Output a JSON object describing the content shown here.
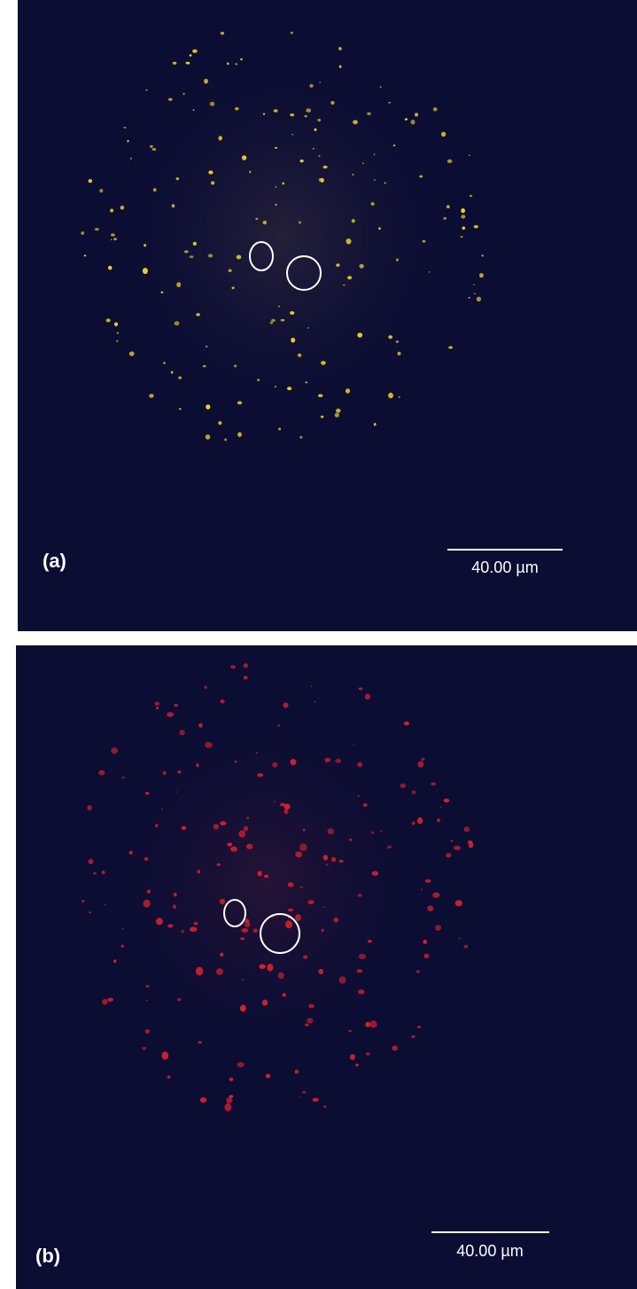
{
  "panels": [
    {
      "label": "(a)",
      "scale_bar": "40.00 µm"
    },
    {
      "label": "(b)",
      "scale_bar": "40.00 µm"
    }
  ]
}
